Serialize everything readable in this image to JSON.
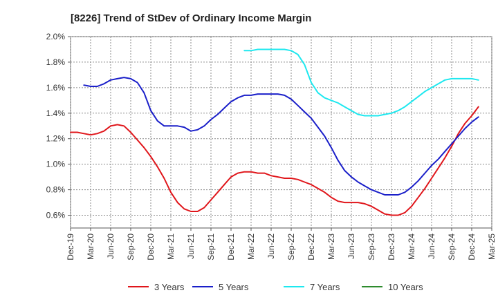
{
  "chart_data": {
    "type": "line",
    "title": "[8226]  Trend of StDev of Ordinary Income Margin",
    "xlabel": "",
    "ylabel": "",
    "x_ticks": [
      "Dec-19",
      "Mar-20",
      "Jun-20",
      "Sep-20",
      "Dec-20",
      "Mar-21",
      "Jun-21",
      "Sep-21",
      "Dec-21",
      "Mar-22",
      "Jun-22",
      "Sep-22",
      "Dec-22",
      "Mar-23",
      "Jun-23",
      "Sep-23",
      "Dec-23",
      "Mar-24",
      "Jun-24",
      "Sep-24",
      "Dec-24",
      "Mar-25"
    ],
    "y_ticks": [
      "0.6%",
      "0.8%",
      "1.0%",
      "1.2%",
      "1.4%",
      "1.6%",
      "1.8%",
      "2.0%"
    ],
    "ylim": [
      0.5,
      2.0
    ],
    "grid": true,
    "legend_position": "bottom",
    "series": [
      {
        "name": "3 Years",
        "color": "#e0161b",
        "points": [
          [
            "Dec-19",
            1.25
          ],
          [
            "Jan-20",
            1.25
          ],
          [
            "Feb-20",
            1.24
          ],
          [
            "Mar-20",
            1.23
          ],
          [
            "Apr-20",
            1.24
          ],
          [
            "May-20",
            1.26
          ],
          [
            "Jun-20",
            1.3
          ],
          [
            "Jul-20",
            1.31
          ],
          [
            "Aug-20",
            1.3
          ],
          [
            "Sep-20",
            1.25
          ],
          [
            "Oct-20",
            1.19
          ],
          [
            "Nov-20",
            1.13
          ],
          [
            "Dec-20",
            1.06
          ],
          [
            "Jan-21",
            0.98
          ],
          [
            "Feb-21",
            0.89
          ],
          [
            "Mar-21",
            0.78
          ],
          [
            "Apr-21",
            0.7
          ],
          [
            "May-21",
            0.65
          ],
          [
            "Jun-21",
            0.63
          ],
          [
            "Jul-21",
            0.63
          ],
          [
            "Aug-21",
            0.66
          ],
          [
            "Sep-21",
            0.72
          ],
          [
            "Oct-21",
            0.78
          ],
          [
            "Nov-21",
            0.84
          ],
          [
            "Dec-21",
            0.9
          ],
          [
            "Jan-22",
            0.93
          ],
          [
            "Feb-22",
            0.94
          ],
          [
            "Mar-22",
            0.94
          ],
          [
            "Apr-22",
            0.93
          ],
          [
            "May-22",
            0.93
          ],
          [
            "Jun-22",
            0.91
          ],
          [
            "Jul-22",
            0.9
          ],
          [
            "Aug-22",
            0.89
          ],
          [
            "Sep-22",
            0.89
          ],
          [
            "Oct-22",
            0.88
          ],
          [
            "Nov-22",
            0.86
          ],
          [
            "Dec-22",
            0.84
          ],
          [
            "Jan-23",
            0.81
          ],
          [
            "Feb-23",
            0.78
          ],
          [
            "Mar-23",
            0.74
          ],
          [
            "Apr-23",
            0.71
          ],
          [
            "May-23",
            0.7
          ],
          [
            "Jun-23",
            0.7
          ],
          [
            "Jul-23",
            0.7
          ],
          [
            "Aug-23",
            0.69
          ],
          [
            "Sep-23",
            0.67
          ],
          [
            "Oct-23",
            0.64
          ],
          [
            "Nov-23",
            0.61
          ],
          [
            "Dec-23",
            0.6
          ],
          [
            "Jan-24",
            0.6
          ],
          [
            "Feb-24",
            0.62
          ],
          [
            "Mar-24",
            0.67
          ],
          [
            "Apr-24",
            0.74
          ],
          [
            "May-24",
            0.81
          ],
          [
            "Jun-24",
            0.89
          ],
          [
            "Jul-24",
            0.97
          ],
          [
            "Aug-24",
            1.05
          ],
          [
            "Sep-24",
            1.14
          ],
          [
            "Oct-24",
            1.24
          ],
          [
            "Nov-24",
            1.32
          ],
          [
            "Dec-24",
            1.38
          ],
          [
            "Jan-25",
            1.45
          ]
        ]
      },
      {
        "name": "5 Years",
        "color": "#1a1fc9",
        "points": [
          [
            "Feb-20",
            1.62
          ],
          [
            "Mar-20",
            1.61
          ],
          [
            "Apr-20",
            1.61
          ],
          [
            "May-20",
            1.63
          ],
          [
            "Jun-20",
            1.66
          ],
          [
            "Jul-20",
            1.67
          ],
          [
            "Aug-20",
            1.68
          ],
          [
            "Sep-20",
            1.67
          ],
          [
            "Oct-20",
            1.64
          ],
          [
            "Nov-20",
            1.56
          ],
          [
            "Dec-20",
            1.42
          ],
          [
            "Jan-21",
            1.34
          ],
          [
            "Feb-21",
            1.3
          ],
          [
            "Mar-21",
            1.3
          ],
          [
            "Apr-21",
            1.3
          ],
          [
            "May-21",
            1.29
          ],
          [
            "Jun-21",
            1.26
          ],
          [
            "Jul-21",
            1.27
          ],
          [
            "Aug-21",
            1.3
          ],
          [
            "Sep-21",
            1.35
          ],
          [
            "Oct-21",
            1.39
          ],
          [
            "Nov-21",
            1.44
          ],
          [
            "Dec-21",
            1.49
          ],
          [
            "Jan-22",
            1.52
          ],
          [
            "Feb-22",
            1.54
          ],
          [
            "Mar-22",
            1.54
          ],
          [
            "Apr-22",
            1.55
          ],
          [
            "May-22",
            1.55
          ],
          [
            "Jun-22",
            1.55
          ],
          [
            "Jul-22",
            1.55
          ],
          [
            "Aug-22",
            1.54
          ],
          [
            "Sep-22",
            1.51
          ],
          [
            "Oct-22",
            1.46
          ],
          [
            "Nov-22",
            1.41
          ],
          [
            "Dec-22",
            1.36
          ],
          [
            "Jan-23",
            1.29
          ],
          [
            "Feb-23",
            1.22
          ],
          [
            "Mar-23",
            1.13
          ],
          [
            "Apr-23",
            1.03
          ],
          [
            "May-23",
            0.95
          ],
          [
            "Jun-23",
            0.9
          ],
          [
            "Jul-23",
            0.86
          ],
          [
            "Aug-23",
            0.83
          ],
          [
            "Sep-23",
            0.8
          ],
          [
            "Oct-23",
            0.78
          ],
          [
            "Nov-23",
            0.76
          ],
          [
            "Dec-23",
            0.76
          ],
          [
            "Jan-24",
            0.76
          ],
          [
            "Feb-24",
            0.78
          ],
          [
            "Mar-24",
            0.82
          ],
          [
            "Apr-24",
            0.87
          ],
          [
            "May-24",
            0.93
          ],
          [
            "Jun-24",
            0.99
          ],
          [
            "Jul-24",
            1.04
          ],
          [
            "Aug-24",
            1.1
          ],
          [
            "Sep-24",
            1.16
          ],
          [
            "Oct-24",
            1.22
          ],
          [
            "Nov-24",
            1.28
          ],
          [
            "Dec-24",
            1.33
          ],
          [
            "Jan-25",
            1.37
          ]
        ]
      },
      {
        "name": "7 Years",
        "color": "#1ee8ef",
        "points": [
          [
            "Feb-22",
            1.89
          ],
          [
            "Mar-22",
            1.89
          ],
          [
            "Apr-22",
            1.9
          ],
          [
            "May-22",
            1.9
          ],
          [
            "Jun-22",
            1.9
          ],
          [
            "Jul-22",
            1.9
          ],
          [
            "Aug-22",
            1.9
          ],
          [
            "Sep-22",
            1.89
          ],
          [
            "Oct-22",
            1.86
          ],
          [
            "Nov-22",
            1.78
          ],
          [
            "Dec-22",
            1.64
          ],
          [
            "Jan-23",
            1.56
          ],
          [
            "Feb-23",
            1.52
          ],
          [
            "Mar-23",
            1.5
          ],
          [
            "Apr-23",
            1.48
          ],
          [
            "May-23",
            1.45
          ],
          [
            "Jun-23",
            1.42
          ],
          [
            "Jul-23",
            1.39
          ],
          [
            "Aug-23",
            1.38
          ],
          [
            "Sep-23",
            1.38
          ],
          [
            "Oct-23",
            1.38
          ],
          [
            "Nov-23",
            1.39
          ],
          [
            "Dec-23",
            1.4
          ],
          [
            "Jan-24",
            1.42
          ],
          [
            "Feb-24",
            1.45
          ],
          [
            "Mar-24",
            1.49
          ],
          [
            "Apr-24",
            1.53
          ],
          [
            "May-24",
            1.57
          ],
          [
            "Jun-24",
            1.6
          ],
          [
            "Jul-24",
            1.63
          ],
          [
            "Aug-24",
            1.66
          ],
          [
            "Sep-24",
            1.67
          ],
          [
            "Oct-24",
            1.67
          ],
          [
            "Nov-24",
            1.67
          ],
          [
            "Dec-24",
            1.67
          ],
          [
            "Jan-25",
            1.66
          ]
        ]
      },
      {
        "name": "10 Years",
        "color": "#2e8b2e",
        "points": []
      }
    ]
  }
}
